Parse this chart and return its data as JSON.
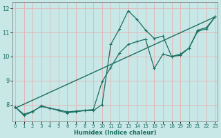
{
  "xlabel": "Humidex (Indice chaleur)",
  "xlim": [
    -0.3,
    23.3
  ],
  "ylim": [
    7.3,
    12.25
  ],
  "yticks": [
    8,
    9,
    10,
    11,
    12
  ],
  "xticks": [
    0,
    1,
    2,
    3,
    4,
    5,
    6,
    7,
    8,
    9,
    10,
    11,
    12,
    13,
    14,
    15,
    16,
    17,
    18,
    19,
    20,
    21,
    22,
    23
  ],
  "bg_color": "#c8e8e8",
  "grid_color": "#e0b8b8",
  "line_color": "#1a6e60",
  "jagged_x": [
    0,
    1,
    2,
    3,
    4,
    5,
    6,
    7,
    8,
    9,
    10,
    11,
    12,
    13,
    14,
    15,
    16,
    17,
    18,
    19,
    20,
    21,
    22,
    23
  ],
  "jagged_y": [
    7.9,
    7.55,
    7.7,
    7.95,
    7.85,
    7.75,
    7.65,
    7.7,
    7.75,
    7.75,
    8.0,
    10.5,
    11.15,
    11.9,
    11.55,
    11.1,
    10.75,
    10.85,
    10.0,
    10.1,
    10.35,
    11.1,
    11.2,
    11.65
  ],
  "smooth_x": [
    0,
    1,
    2,
    3,
    4,
    5,
    6,
    7,
    8,
    9,
    10,
    11,
    12,
    13,
    14,
    15,
    16,
    17,
    18,
    19,
    20,
    21,
    22,
    23
  ],
  "smooth_y": [
    7.9,
    7.6,
    7.72,
    7.92,
    7.85,
    7.78,
    7.7,
    7.73,
    7.76,
    7.8,
    8.95,
    9.55,
    10.15,
    10.5,
    10.62,
    10.72,
    9.5,
    10.1,
    10.0,
    10.05,
    10.35,
    11.05,
    11.15,
    11.65
  ],
  "trend_x": [
    0,
    23
  ],
  "trend_y": [
    7.85,
    11.65
  ]
}
